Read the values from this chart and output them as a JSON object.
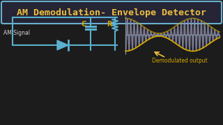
{
  "bg_dark": "#1c1c1c",
  "title_text": "AM Demodulation- Envelope Detector",
  "title_color": "#f0c040",
  "title_border_color": "#6ab0d0",
  "am_signal_label": "AM Signal",
  "demod_label": "Demodulated output",
  "circuit_color": "#5ab0d0",
  "signal_color_fill": "#9090b0",
  "envelope_color": "#d4a800",
  "axis_color": "#8090a0",
  "arrow_color": "#f0c040",
  "am_label_color": "#d4d4d4",
  "component_label_color": "#d4a800"
}
